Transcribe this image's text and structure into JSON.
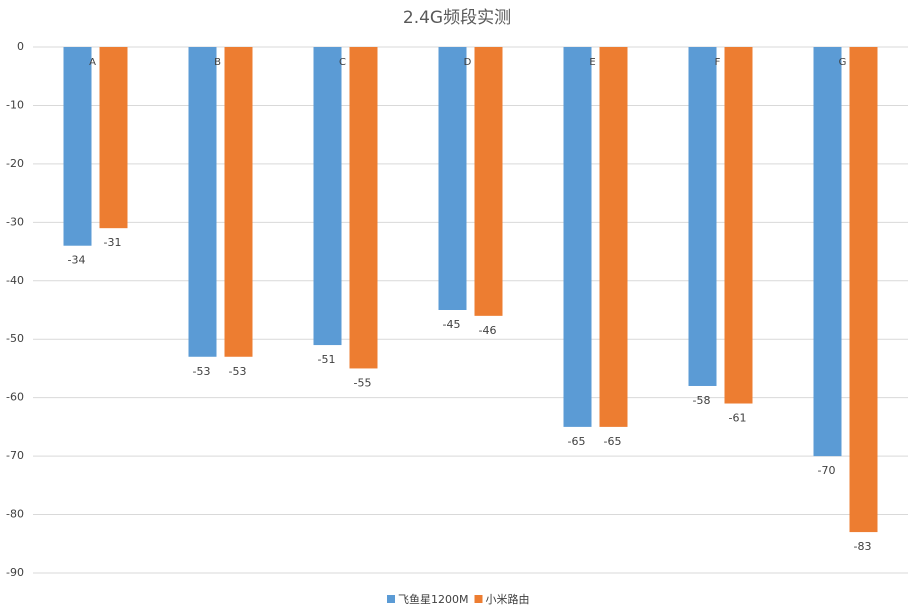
{
  "chart_data": {
    "type": "bar",
    "title": "2.4G频段实测",
    "categories": [
      "A",
      "B",
      "C",
      "D",
      "E",
      "F",
      "G"
    ],
    "series": [
      {
        "name": "飞鱼星1200M",
        "color": "#5b9bd5",
        "values": [
          -34,
          -53,
          -51,
          -45,
          -65,
          -58,
          -70
        ]
      },
      {
        "name": "小米路由",
        "color": "#ed7d31",
        "values": [
          -31,
          -53,
          -55,
          -46,
          -65,
          -61,
          -83
        ]
      }
    ],
    "ylim": [
      -90,
      0
    ],
    "yticks": [
      0,
      -10,
      -20,
      -30,
      -40,
      -50,
      -60,
      -70,
      -80,
      -90
    ],
    "grid": true
  }
}
